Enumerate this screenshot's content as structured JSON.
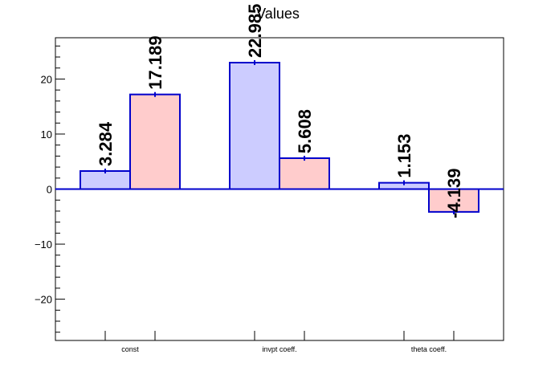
{
  "chart_data": {
    "type": "bar",
    "title": "Values",
    "categories": [
      "const",
      "invpt coeff.",
      "theta coeff."
    ],
    "series": [
      {
        "values": [
          3.284,
          22.985,
          1.153
        ],
        "labels": [
          "3.284",
          "22.985",
          "1.153"
        ],
        "color": "#ccccff"
      },
      {
        "values": [
          17.189,
          5.608,
          -4.139
        ],
        "labels": [
          "17.189",
          "5.608",
          "-4.139"
        ],
        "color": "#ffcccc"
      }
    ],
    "ylim": [
      -27.5,
      27.5
    ],
    "yticks": [
      -20,
      -10,
      0,
      10,
      20
    ],
    "ytick_labels": [
      "−20",
      "−10",
      "0",
      "10",
      "20"
    ],
    "edge_color": "#0000cc",
    "grid": false
  }
}
